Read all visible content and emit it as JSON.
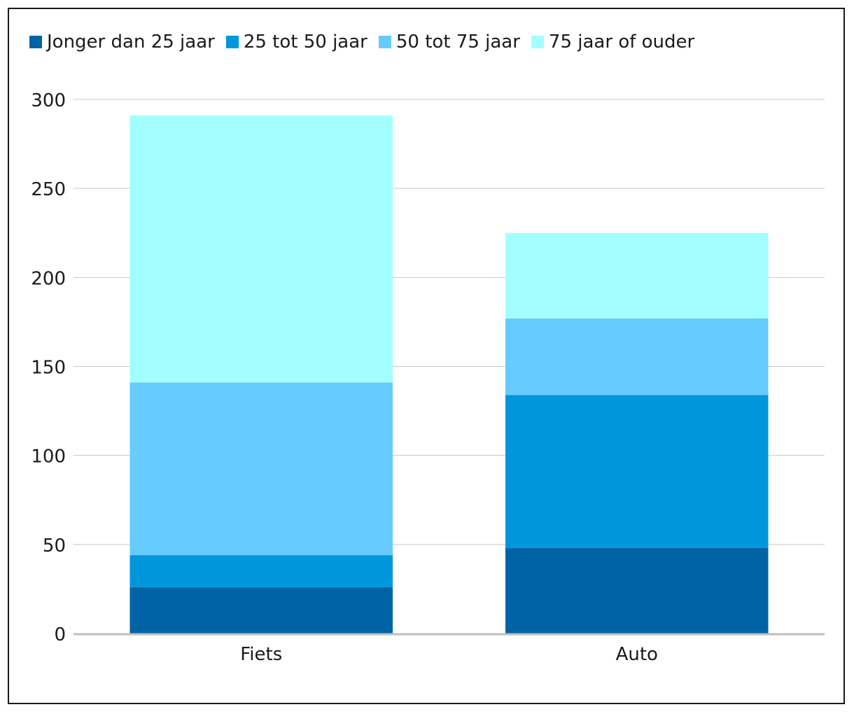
{
  "chart_data": {
    "type": "bar",
    "stacked": true,
    "categories": [
      "Fiets",
      "Auto"
    ],
    "series": [
      {
        "name": "Jonger dan 25 jaar",
        "values": [
          26,
          48
        ],
        "color": "#0063a6"
      },
      {
        "name": "25 tot 50 jaar",
        "values": [
          18,
          86
        ],
        "color": "#0096db"
      },
      {
        "name": "50 tot 75 jaar",
        "values": [
          97,
          43
        ],
        "color": "#66cbff"
      },
      {
        "name": "75 jaar of ouder",
        "values": [
          150,
          48
        ],
        "color": "#a3ffff"
      }
    ],
    "ylim": [
      0,
      300
    ],
    "yticks": [
      0,
      50,
      100,
      150,
      200,
      250,
      300
    ],
    "grid": true,
    "legend_position": "top-left",
    "xlabel": "",
    "ylabel": "",
    "title": ""
  }
}
